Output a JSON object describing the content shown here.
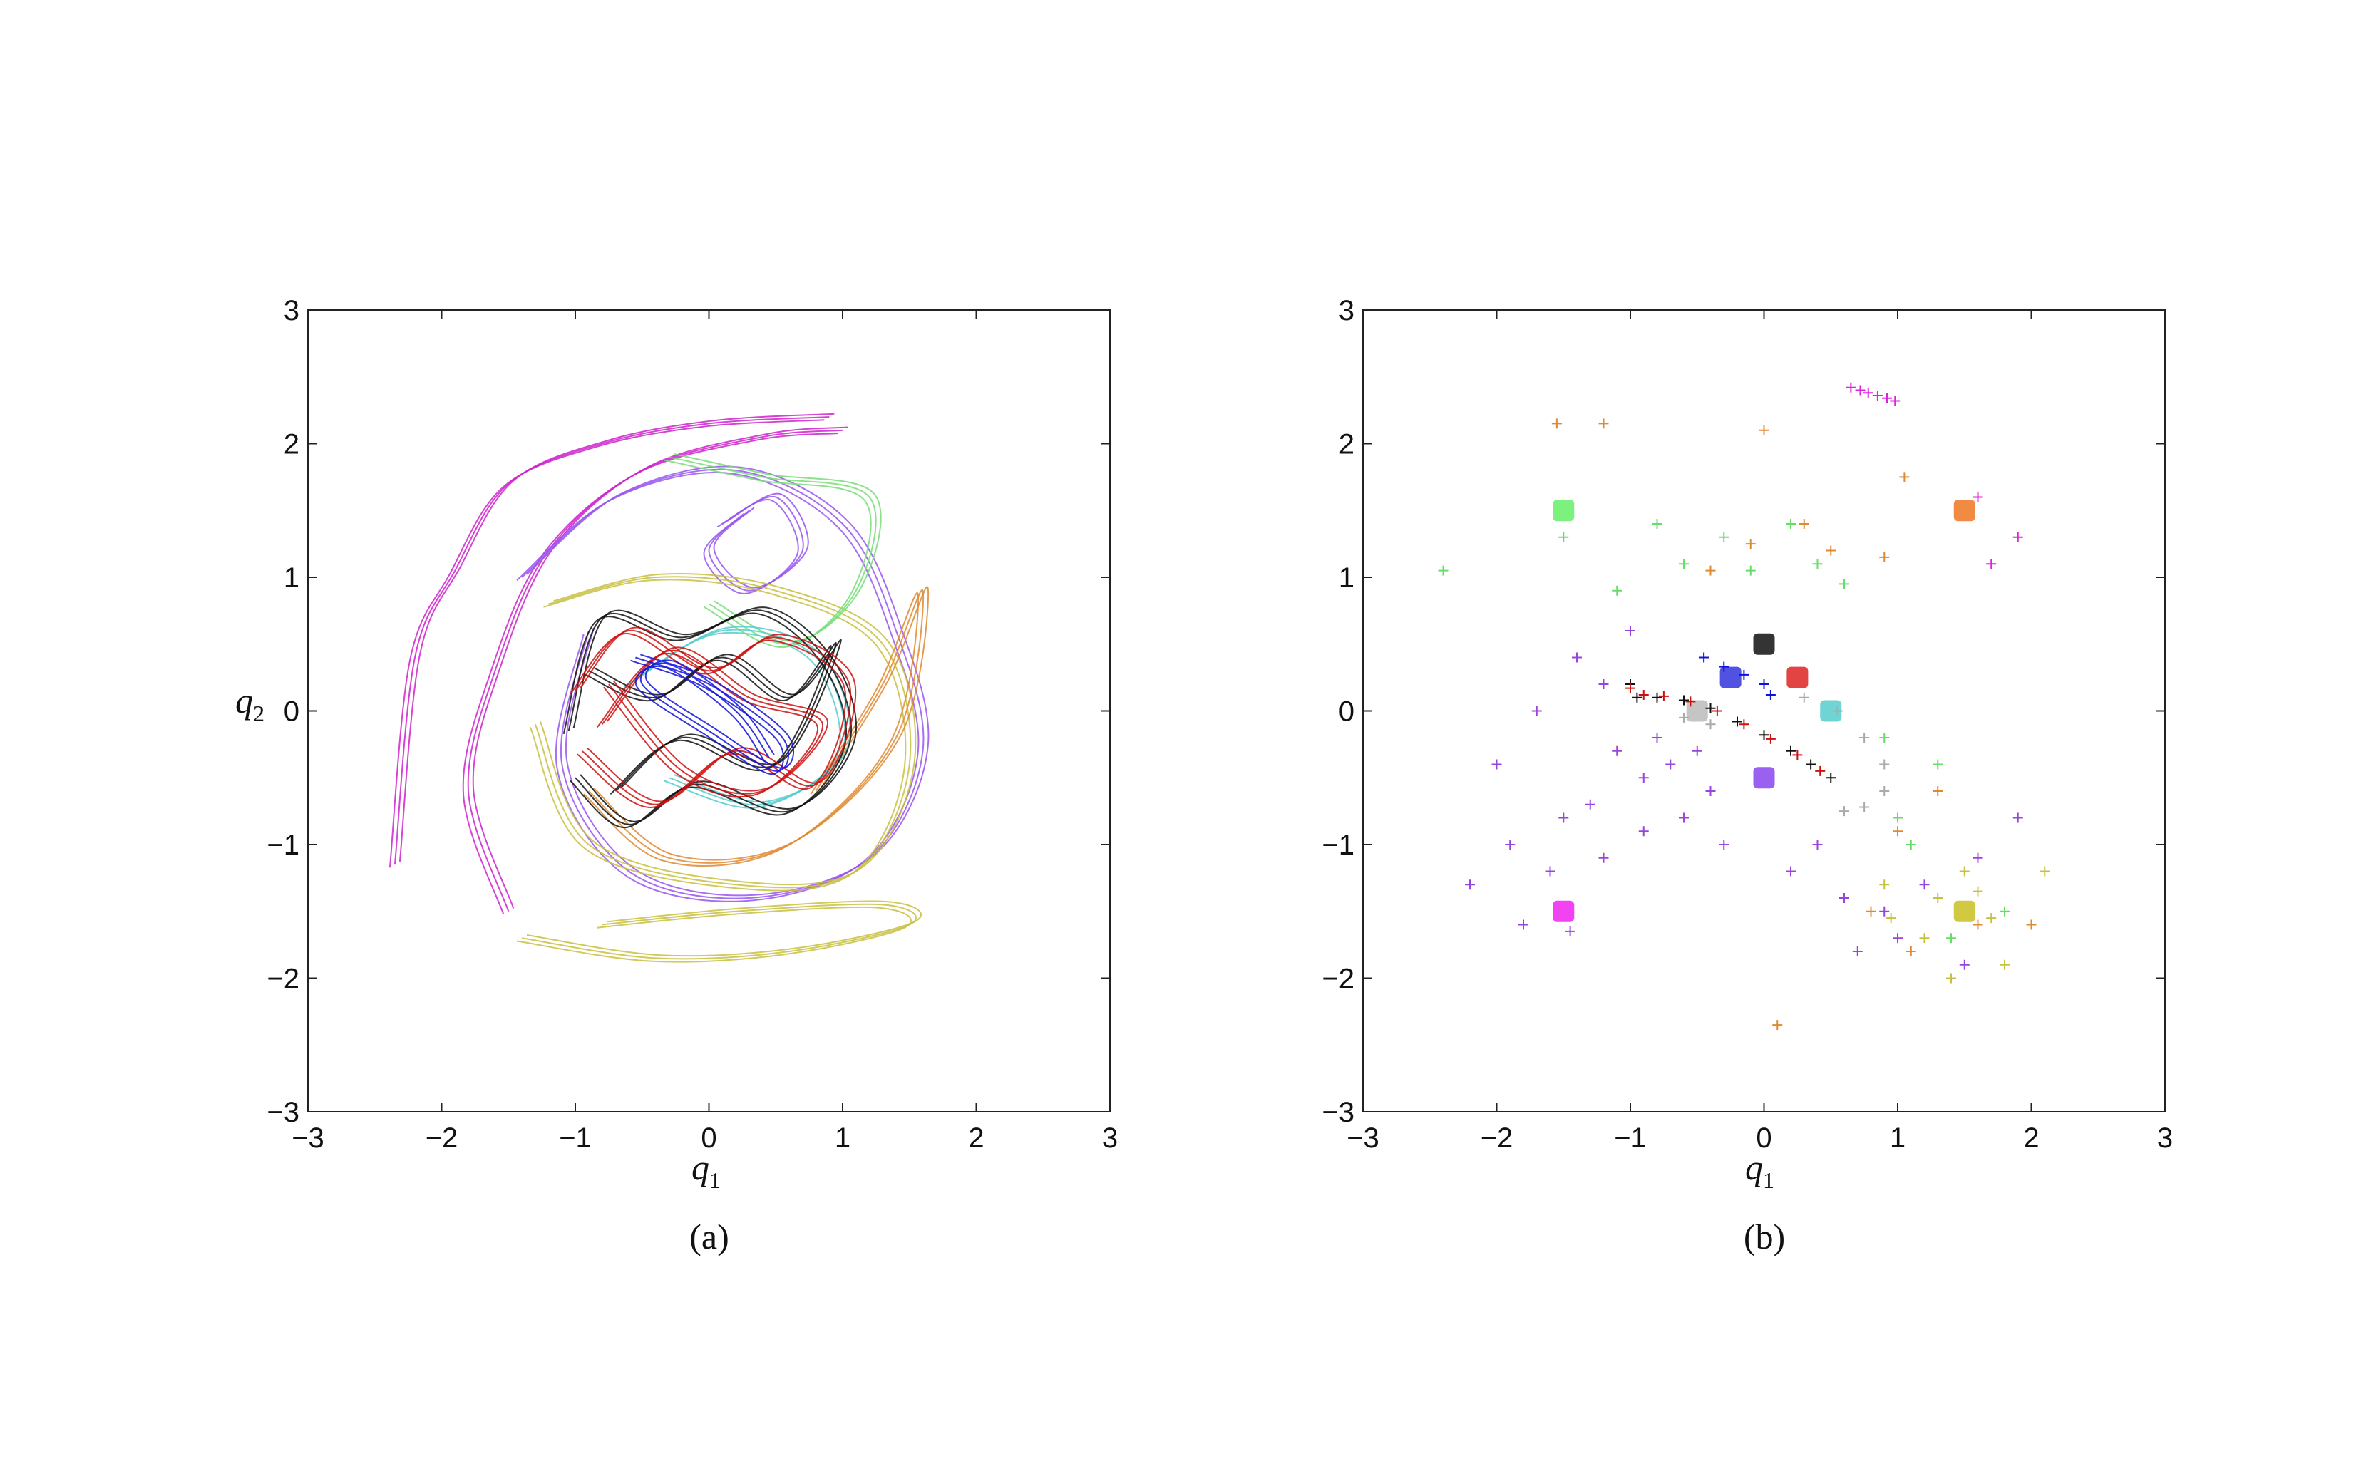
{
  "chart_data": [
    {
      "type": "line",
      "panel": "(a)",
      "xlabel": "q1",
      "xlabel_base": "q",
      "xlabel_sub": "1",
      "ylabel": "q2",
      "ylabel_base": "q",
      "ylabel_sub": "2",
      "xlim": [
        -3,
        3
      ],
      "ylim": [
        -3,
        3
      ],
      "xticks": [
        -3,
        -2,
        -1,
        0,
        1,
        2,
        3
      ],
      "yticks": [
        -3,
        -2,
        -1,
        0,
        1,
        2,
        3
      ],
      "tick_labels": [
        "−3",
        "−2",
        "−1",
        "0",
        "1",
        "2",
        "3"
      ],
      "grid": false,
      "series": [
        {
          "color": "#cc22cc",
          "values": [
            [
              -2.35,
              -1.15
            ],
            [
              -2.2,
              0.4
            ],
            [
              -1.9,
              1.05
            ],
            [
              -1.5,
              1.7
            ],
            [
              -0.8,
              2.0
            ],
            [
              0.0,
              2.15
            ],
            [
              0.9,
              2.2
            ]
          ]
        },
        {
          "color": "#cc22cc",
          "values": [
            [
              -1.5,
              -1.5
            ],
            [
              -1.8,
              -0.6
            ],
            [
              -1.6,
              0.3
            ],
            [
              -1.2,
              1.2
            ],
            [
              -0.5,
              1.8
            ],
            [
              0.4,
              2.05
            ],
            [
              1.0,
              2.1
            ]
          ]
        },
        {
          "color": "#9955ee",
          "values": [
            [
              -1.4,
              1.0
            ],
            [
              -0.7,
              1.6
            ],
            [
              0.2,
              1.8
            ],
            [
              1.0,
              1.4
            ],
            [
              1.4,
              0.6
            ],
            [
              1.6,
              -0.3
            ],
            [
              1.2,
              -1.1
            ],
            [
              0.3,
              -1.4
            ],
            [
              -0.6,
              -1.2
            ],
            [
              -1.1,
              -0.4
            ],
            [
              -0.9,
              0.6
            ]
          ]
        },
        {
          "color": "#9955ee",
          "values": [
            [
              0.3,
              1.5
            ],
            [
              0.0,
              1.2
            ],
            [
              0.3,
              0.9
            ],
            [
              0.7,
              1.2
            ],
            [
              0.5,
              1.6
            ],
            [
              0.1,
              1.4
            ]
          ]
        },
        {
          "color": "#c8c040",
          "values": [
            [
              -1.4,
              -1.7
            ],
            [
              -0.4,
              -1.85
            ],
            [
              0.6,
              -1.8
            ],
            [
              1.5,
              -1.6
            ],
            [
              1.3,
              -1.45
            ],
            [
              0.2,
              -1.5
            ],
            [
              -0.8,
              -1.6
            ]
          ]
        },
        {
          "color": "#c8c040",
          "values": [
            [
              -1.2,
              0.8
            ],
            [
              -0.4,
              1.0
            ],
            [
              0.5,
              0.9
            ],
            [
              1.3,
              0.5
            ],
            [
              1.5,
              -0.4
            ],
            [
              1.1,
              -1.2
            ],
            [
              0.2,
              -1.3
            ],
            [
              -0.9,
              -1.0
            ],
            [
              -1.3,
              -0.1
            ]
          ]
        },
        {
          "color": "#e08a30",
          "values": [
            [
              -0.9,
              -0.6
            ],
            [
              -0.3,
              -1.1
            ],
            [
              0.6,
              -1.0
            ],
            [
              1.4,
              -0.2
            ],
            [
              1.6,
              0.9
            ],
            [
              1.3,
              0.2
            ],
            [
              0.8,
              -0.6
            ]
          ]
        },
        {
          "color": "#77dd77",
          "values": [
            [
              -0.3,
              1.9
            ],
            [
              0.4,
              1.75
            ],
            [
              1.2,
              1.6
            ],
            [
              1.1,
              0.9
            ],
            [
              0.6,
              0.5
            ],
            [
              0.0,
              0.8
            ]
          ]
        },
        {
          "color": "#55cccc",
          "values": [
            [
              -0.6,
              0.2
            ],
            [
              0.1,
              0.6
            ],
            [
              0.8,
              0.4
            ],
            [
              1.0,
              -0.3
            ],
            [
              0.4,
              -0.7
            ],
            [
              -0.3,
              -0.5
            ]
          ]
        },
        {
          "color": "#111111",
          "values": [
            [
              -1.05,
              -0.15
            ],
            [
              -0.8,
              0.7
            ],
            [
              -0.2,
              0.55
            ],
            [
              0.4,
              0.75
            ],
            [
              0.9,
              0.35
            ],
            [
              1.05,
              -0.25
            ],
            [
              0.6,
              -0.75
            ],
            [
              -0.1,
              -0.55
            ],
            [
              -0.6,
              -0.85
            ],
            [
              -1.0,
              -0.5
            ]
          ]
        },
        {
          "color": "#111111",
          "values": [
            [
              -0.9,
              0.3
            ],
            [
              -0.4,
              0.1
            ],
            [
              0.1,
              0.4
            ],
            [
              0.6,
              0.1
            ],
            [
              0.95,
              0.5
            ],
            [
              0.5,
              -0.4
            ],
            [
              -0.2,
              -0.2
            ],
            [
              -0.7,
              -0.6
            ]
          ]
        },
        {
          "color": "#cc1111",
          "values": [
            [
              -1.0,
              0.15
            ],
            [
              -0.6,
              0.6
            ],
            [
              0.0,
              0.3
            ],
            [
              0.5,
              0.55
            ],
            [
              1.05,
              0.2
            ],
            [
              0.8,
              -0.55
            ],
            [
              0.2,
              -0.3
            ],
            [
              -0.4,
              -0.7
            ],
            [
              -0.95,
              -0.3
            ]
          ]
        },
        {
          "color": "#cc1111",
          "values": [
            [
              -0.8,
              -0.1
            ],
            [
              -0.3,
              0.45
            ],
            [
              0.3,
              0.1
            ],
            [
              0.85,
              -0.1
            ],
            [
              0.4,
              -0.6
            ],
            [
              -0.2,
              -0.45
            ],
            [
              -0.75,
              0.2
            ]
          ]
        },
        {
          "color": "#1111dd",
          "values": [
            [
              -0.55,
              0.4
            ],
            [
              0.0,
              0.2
            ],
            [
              0.55,
              -0.2
            ],
            [
              0.5,
              -0.45
            ],
            [
              0.0,
              -0.15
            ],
            [
              -0.5,
              0.2
            ],
            [
              -0.3,
              0.35
            ],
            [
              0.2,
              0.0
            ],
            [
              0.45,
              -0.35
            ]
          ]
        }
      ]
    },
    {
      "type": "scatter",
      "panel": "(b)",
      "xlabel": "q1",
      "xlabel_base": "q",
      "xlabel_sub": "1",
      "xlim": [
        -3,
        3
      ],
      "ylim": [
        -3,
        3
      ],
      "xticks": [
        -3,
        -2,
        -1,
        0,
        1,
        2,
        3
      ],
      "yticks": [
        -3,
        -2,
        -1,
        0,
        1,
        2,
        3
      ],
      "tick_labels": [
        "−3",
        "−2",
        "−1",
        "0",
        "1",
        "2",
        "3"
      ],
      "grid": false,
      "centers": [
        {
          "x": -1.5,
          "y": 1.5,
          "color": "#66ee66"
        },
        {
          "x": 1.5,
          "y": 1.5,
          "color": "#ee7722"
        },
        {
          "x": 0.0,
          "y": 0.5,
          "color": "#111111"
        },
        {
          "x": 0.25,
          "y": 0.25,
          "color": "#dd2222"
        },
        {
          "x": -0.25,
          "y": 0.25,
          "color": "#3333dd"
        },
        {
          "x": 0.5,
          "y": 0.0,
          "color": "#55cccc"
        },
        {
          "x": -0.5,
          "y": 0.0,
          "color": "#bbbbbb"
        },
        {
          "x": 0.0,
          "y": -0.5,
          "color": "#8844ee"
        },
        {
          "x": -1.5,
          "y": -1.5,
          "color": "#ee22ee"
        },
        {
          "x": 1.5,
          "y": -1.5,
          "color": "#c8c020"
        }
      ],
      "marker_series": [
        {
          "color": "#9944dd",
          "values": [
            [
              -1.0,
              0.6
            ],
            [
              -1.2,
              0.2
            ],
            [
              -0.8,
              -0.2
            ],
            [
              -1.1,
              -0.3
            ],
            [
              -0.9,
              -0.5
            ],
            [
              -1.3,
              -0.7
            ],
            [
              -0.7,
              -0.4
            ],
            [
              -0.5,
              -0.3
            ],
            [
              -1.5,
              -0.8
            ],
            [
              -1.9,
              -1.0
            ],
            [
              -1.6,
              -1.2
            ],
            [
              -2.2,
              -1.3
            ],
            [
              -1.8,
              -1.6
            ],
            [
              -0.6,
              -0.8
            ],
            [
              -0.3,
              -1.0
            ],
            [
              0.2,
              -1.2
            ],
            [
              0.4,
              -1.0
            ],
            [
              0.6,
              -1.4
            ],
            [
              0.9,
              -1.5
            ],
            [
              1.2,
              -1.3
            ],
            [
              1.6,
              -1.1
            ],
            [
              1.9,
              -0.8
            ],
            [
              -1.4,
              0.4
            ],
            [
              -1.7,
              0.0
            ],
            [
              -2.0,
              -0.4
            ],
            [
              -0.4,
              -0.6
            ],
            [
              -1.2,
              -1.1
            ],
            [
              -0.9,
              -0.9
            ],
            [
              1.0,
              -1.7
            ],
            [
              0.7,
              -1.8
            ],
            [
              1.5,
              -1.9
            ],
            [
              -1.45,
              -1.65
            ]
          ]
        },
        {
          "color": "#66dd66",
          "values": [
            [
              -2.4,
              1.05
            ],
            [
              -1.5,
              1.3
            ],
            [
              -0.8,
              1.4
            ],
            [
              -0.3,
              1.3
            ],
            [
              0.2,
              1.4
            ],
            [
              0.4,
              1.1
            ],
            [
              -0.6,
              1.1
            ],
            [
              -1.1,
              0.9
            ],
            [
              1.0,
              -0.8
            ],
            [
              1.3,
              -0.4
            ],
            [
              0.9,
              -0.2
            ],
            [
              1.8,
              -1.5
            ],
            [
              1.4,
              -1.7
            ],
            [
              1.1,
              -1.0
            ],
            [
              -0.1,
              1.05
            ],
            [
              0.6,
              0.95
            ]
          ]
        },
        {
          "color": "#e08a30",
          "values": [
            [
              -1.55,
              2.15
            ],
            [
              -1.2,
              2.15
            ],
            [
              0.0,
              2.1
            ],
            [
              -0.1,
              1.25
            ],
            [
              0.5,
              1.2
            ],
            [
              0.9,
              1.15
            ],
            [
              1.0,
              -0.9
            ],
            [
              1.3,
              -0.6
            ],
            [
              0.8,
              -1.5
            ],
            [
              1.1,
              -1.8
            ],
            [
              0.1,
              -2.35
            ],
            [
              1.6,
              -1.6
            ],
            [
              2.0,
              -1.6
            ],
            [
              -0.4,
              1.05
            ],
            [
              0.3,
              1.4
            ],
            [
              1.05,
              1.75
            ]
          ]
        },
        {
          "color": "#c8c040",
          "values": [
            [
              1.3,
              -1.4
            ],
            [
              1.5,
              -1.2
            ],
            [
              1.7,
              -1.55
            ],
            [
              1.2,
              -1.7
            ],
            [
              0.9,
              -1.3
            ],
            [
              1.8,
              -1.9
            ],
            [
              1.4,
              -2.0
            ],
            [
              0.95,
              -1.55
            ],
            [
              1.6,
              -1.35
            ],
            [
              2.1,
              -1.2
            ]
          ]
        },
        {
          "color": "#dd22dd",
          "values": [
            [
              0.65,
              2.42
            ],
            [
              0.72,
              2.4
            ],
            [
              0.78,
              2.38
            ],
            [
              0.85,
              2.36
            ],
            [
              0.92,
              2.34
            ],
            [
              0.98,
              2.32
            ],
            [
              1.6,
              1.6
            ],
            [
              1.9,
              1.3
            ],
            [
              1.7,
              1.1
            ]
          ]
        },
        {
          "color": "#111111",
          "values": [
            [
              -1.0,
              0.2
            ],
            [
              -0.95,
              0.1
            ],
            [
              -0.8,
              0.1
            ],
            [
              -0.6,
              0.08
            ],
            [
              -0.4,
              0.02
            ],
            [
              -0.2,
              -0.08
            ],
            [
              0.0,
              -0.18
            ],
            [
              0.2,
              -0.3
            ],
            [
              0.35,
              -0.4
            ],
            [
              0.5,
              -0.5
            ]
          ]
        },
        {
          "color": "#cc1111",
          "values": [
            [
              -1.0,
              0.17
            ],
            [
              -0.9,
              0.12
            ],
            [
              -0.75,
              0.11
            ],
            [
              -0.55,
              0.07
            ],
            [
              -0.35,
              0.0
            ],
            [
              -0.15,
              -0.1
            ],
            [
              0.05,
              -0.21
            ],
            [
              0.25,
              -0.33
            ],
            [
              0.42,
              -0.45
            ]
          ]
        },
        {
          "color": "#aaaaaa",
          "values": [
            [
              0.3,
              0.1
            ],
            [
              0.55,
              0.0
            ],
            [
              0.75,
              -0.2
            ],
            [
              0.9,
              -0.4
            ],
            [
              0.9,
              -0.6
            ],
            [
              0.75,
              -0.72
            ],
            [
              0.6,
              -0.75
            ],
            [
              -0.6,
              -0.05
            ],
            [
              -0.4,
              -0.1
            ]
          ]
        },
        {
          "color": "#1111dd",
          "values": [
            [
              -0.45,
              0.4
            ],
            [
              -0.3,
              0.33
            ],
            [
              -0.15,
              0.27
            ],
            [
              0.0,
              0.2
            ],
            [
              0.05,
              0.12
            ]
          ]
        }
      ]
    }
  ],
  "captions": [
    "(a)",
    "(b)"
  ]
}
